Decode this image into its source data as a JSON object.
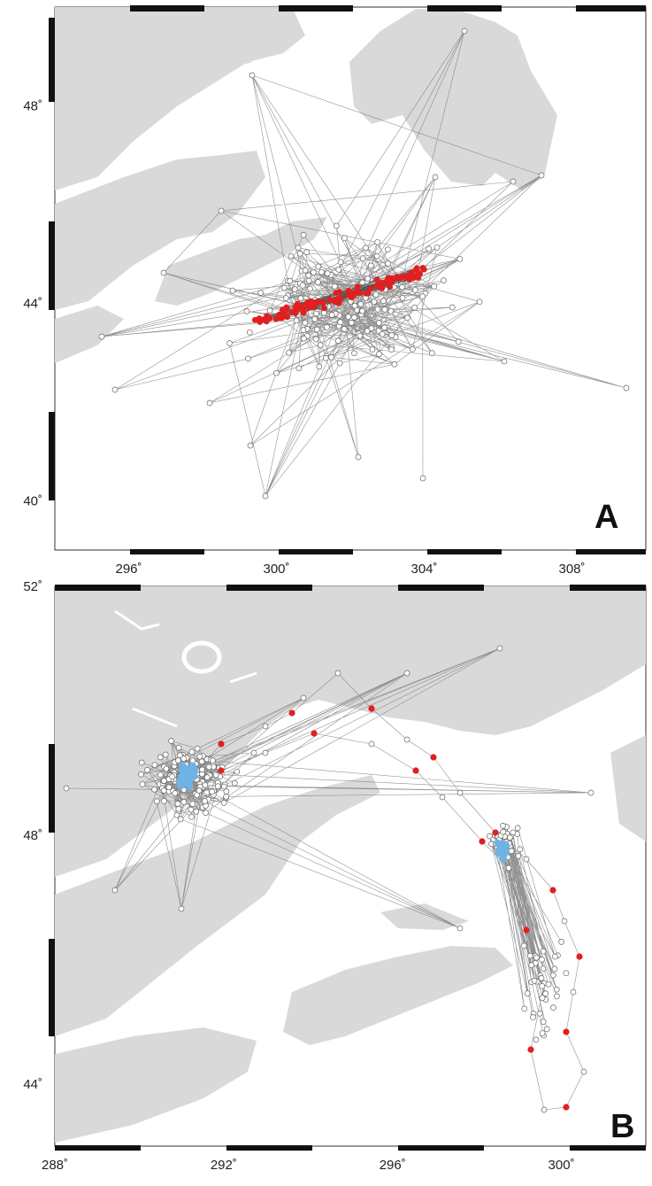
{
  "panels": [
    {
      "label": "A",
      "lon_range": [
        294,
        310
      ],
      "lat_range": [
        39,
        50
      ],
      "x_ticks": [
        {
          "value": 296,
          "label": "296˚"
        },
        {
          "value": 300,
          "label": "300˚"
        },
        {
          "value": 304,
          "label": "304˚"
        },
        {
          "value": 308,
          "label": "308˚"
        }
      ],
      "y_ticks": [
        {
          "value": 48,
          "label": "48˚"
        },
        {
          "value": 44,
          "label": "44˚"
        },
        {
          "value": 40,
          "label": "40˚"
        }
      ],
      "colors": {
        "land": "#d8d8d8",
        "track": "#777777",
        "dot_outline": "#666666",
        "highlight": "#e02020"
      }
    },
    {
      "label": "B",
      "lon_range": [
        288,
        302
      ],
      "lat_range": [
        43,
        52
      ],
      "x_ticks": [
        {
          "value": 288,
          "label": "288˚"
        },
        {
          "value": 292,
          "label": "292˚"
        },
        {
          "value": 296,
          "label": "296˚"
        },
        {
          "value": 300,
          "label": "300˚"
        }
      ],
      "y_ticks": [
        {
          "value": 52,
          "label": "52˚"
        },
        {
          "value": 48,
          "label": "48˚"
        },
        {
          "value": 44,
          "label": "44˚"
        }
      ],
      "colors": {
        "land": "#d8d8d8",
        "track": "#777777",
        "dot_outline": "#666666",
        "highlight": "#e02020",
        "highlight2": "#6fb3e6"
      }
    }
  ]
}
